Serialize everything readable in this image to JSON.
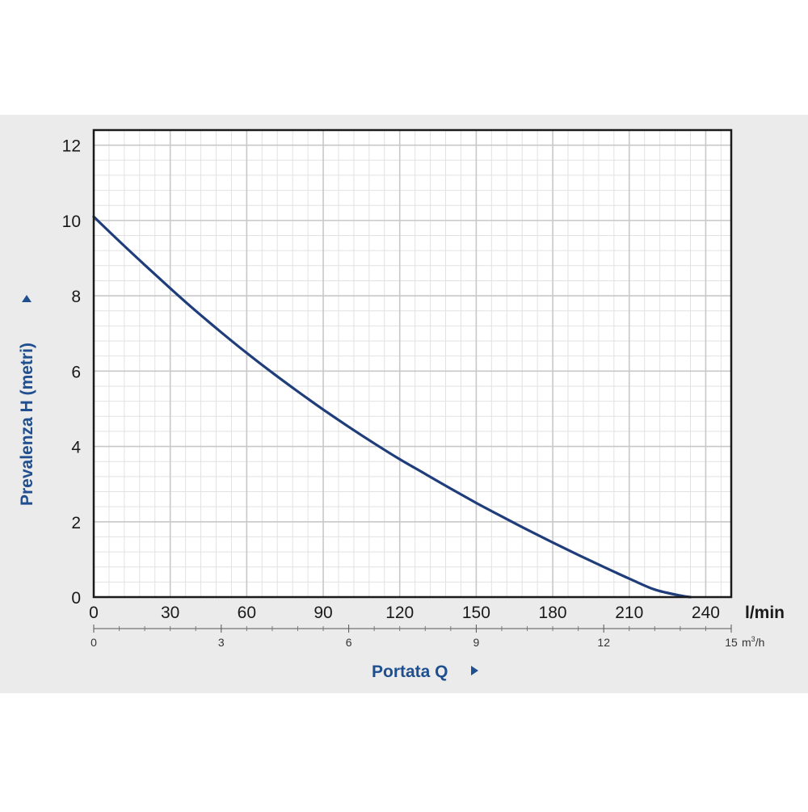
{
  "chart_data": {
    "type": "line",
    "title": "",
    "ylabel": "Prevalenza H (metri)",
    "xlabel": "Portata Q",
    "x_unit": "l/min",
    "x2_unit_base": "m",
    "x2_unit_exp": "3",
    "x2_unit_tail": "/h",
    "xlim": [
      0,
      250
    ],
    "ylim": [
      0,
      12.4
    ],
    "x_ticks": [
      0,
      30,
      60,
      90,
      120,
      150,
      180,
      210,
      240
    ],
    "x_tick_labels": [
      "0",
      "30",
      "60",
      "90",
      "120",
      "150",
      "180",
      "210",
      "240"
    ],
    "x2_ticks_lmin": [
      0,
      50,
      100,
      150,
      200,
      250
    ],
    "x2_tick_labels": [
      "0",
      "3",
      "6",
      "9",
      "12",
      "15"
    ],
    "y_ticks": [
      0,
      2,
      4,
      6,
      8,
      10,
      12
    ],
    "y_tick_labels": [
      "0",
      "2",
      "4",
      "6",
      "8",
      "10",
      "12"
    ],
    "grid": true,
    "series": [
      {
        "x": [
          0,
          10,
          20,
          30,
          40,
          50,
          60,
          70,
          80,
          90,
          100,
          110,
          120,
          130,
          140,
          150,
          160,
          170,
          180,
          190,
          200,
          210,
          220,
          230,
          234
        ],
        "y": [
          10.1,
          9.45,
          8.82,
          8.2,
          7.6,
          7.03,
          6.48,
          5.96,
          5.46,
          4.98,
          4.52,
          4.08,
          3.66,
          3.27,
          2.88,
          2.5,
          2.14,
          1.79,
          1.45,
          1.12,
          0.8,
          0.49,
          0.2,
          0.04,
          0.0
        ]
      }
    ]
  },
  "colors": {
    "background": "#ebebeb",
    "plot_background": "#ffffff",
    "curve": "#1f3d7a",
    "axis_label": "#1f4f8f",
    "tick_text": "#1a1a1a",
    "major_grid": "#c8c8c8",
    "minor_grid": "#e2e2e2",
    "frame": "#1a1a1a"
  }
}
